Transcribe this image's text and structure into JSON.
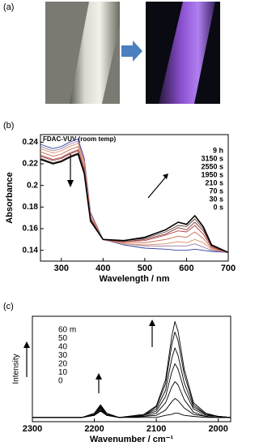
{
  "panel_labels": [
    "(a)",
    "(b)",
    "(c)"
  ],
  "chart_data": [
    {
      "type": "line",
      "title": "FDAC-VUV (room temp)",
      "x_label": "Wavelength / nm",
      "y_label": "Absorbance",
      "x": [
        250,
        280,
        300,
        320,
        340,
        355,
        370,
        400,
        450,
        500,
        550,
        580,
        600,
        620,
        640,
        660,
        700
      ],
      "xlim": [
        250,
        700
      ],
      "xticks": [
        300,
        400,
        500,
        600,
        700
      ],
      "ylim": [
        0.13,
        0.247
      ],
      "yticks": [
        0.14,
        0.16,
        0.18,
        0.2,
        0.22,
        0.24
      ],
      "series": [
        {
          "name": "9 h",
          "color": "#000000",
          "values": [
            0.224,
            0.22,
            0.222,
            0.226,
            0.229,
            0.211,
            0.167,
            0.15,
            0.149,
            0.152,
            0.159,
            0.166,
            0.164,
            0.172,
            0.162,
            0.145,
            0.138
          ]
        },
        {
          "name": "3150 s",
          "color": "#5a3a3a",
          "values": [
            0.225,
            0.221,
            0.223,
            0.227,
            0.23,
            0.212,
            0.168,
            0.15,
            0.149,
            0.151,
            0.157,
            0.163,
            0.162,
            0.169,
            0.16,
            0.144,
            0.138
          ]
        },
        {
          "name": "2550 s",
          "color": "#8a3a3a",
          "values": [
            0.227,
            0.223,
            0.225,
            0.229,
            0.232,
            0.214,
            0.169,
            0.15,
            0.148,
            0.15,
            0.155,
            0.161,
            0.159,
            0.166,
            0.158,
            0.144,
            0.138
          ]
        },
        {
          "name": "1950 s",
          "color": "#b04040",
          "values": [
            0.228,
            0.224,
            0.226,
            0.23,
            0.233,
            0.215,
            0.169,
            0.15,
            0.148,
            0.149,
            0.154,
            0.158,
            0.157,
            0.163,
            0.155,
            0.143,
            0.138
          ]
        },
        {
          "name": "210 s",
          "color": "#c86a4a",
          "values": [
            0.231,
            0.227,
            0.229,
            0.233,
            0.236,
            0.218,
            0.171,
            0.15,
            0.147,
            0.147,
            0.15,
            0.153,
            0.152,
            0.157,
            0.151,
            0.142,
            0.138
          ]
        },
        {
          "name": "70 s",
          "color": "#d9906a",
          "values": [
            0.234,
            0.23,
            0.232,
            0.236,
            0.239,
            0.221,
            0.173,
            0.15,
            0.146,
            0.145,
            0.146,
            0.148,
            0.147,
            0.15,
            0.147,
            0.141,
            0.138
          ]
        },
        {
          "name": "30 s",
          "color": "#9a7aa0",
          "values": [
            0.236,
            0.232,
            0.234,
            0.238,
            0.241,
            0.223,
            0.174,
            0.15,
            0.146,
            0.144,
            0.144,
            0.144,
            0.144,
            0.146,
            0.143,
            0.14,
            0.138
          ]
        },
        {
          "name": "0 s",
          "color": "#3040a0",
          "values": [
            0.238,
            0.234,
            0.236,
            0.24,
            0.243,
            0.225,
            0.175,
            0.15,
            0.145,
            0.142,
            0.141,
            0.14,
            0.14,
            0.141,
            0.14,
            0.139,
            0.138
          ]
        }
      ]
    },
    {
      "type": "line",
      "x_label": "Wavenumber / cm⁻¹",
      "y_label": "Intensity",
      "x": [
        2300,
        2250,
        2220,
        2200,
        2190,
        2180,
        2160,
        2120,
        2100,
        2085,
        2075,
        2070,
        2065,
        2055,
        2040,
        2020,
        2000,
        1980
      ],
      "xlim": [
        2300,
        1980
      ],
      "xticks": [
        2300,
        2200,
        2100,
        2000
      ],
      "ylim": [
        0,
        1
      ],
      "series": [
        {
          "name": "60 m",
          "color": "#000000",
          "values": [
            0.04,
            0.04,
            0.04,
            0.08,
            0.16,
            0.08,
            0.04,
            0.07,
            0.15,
            0.4,
            0.81,
            0.95,
            0.86,
            0.5,
            0.18,
            0.08,
            0.05,
            0.04
          ]
        },
        {
          "name": "50",
          "color": "#000000",
          "values": [
            0.04,
            0.04,
            0.04,
            0.07,
            0.15,
            0.07,
            0.04,
            0.06,
            0.14,
            0.36,
            0.73,
            0.85,
            0.77,
            0.45,
            0.16,
            0.07,
            0.05,
            0.04
          ]
        },
        {
          "name": "40",
          "color": "#000000",
          "values": [
            0.04,
            0.04,
            0.04,
            0.07,
            0.14,
            0.07,
            0.04,
            0.06,
            0.12,
            0.3,
            0.6,
            0.7,
            0.63,
            0.37,
            0.14,
            0.07,
            0.05,
            0.04
          ]
        },
        {
          "name": "30",
          "color": "#000000",
          "values": [
            0.04,
            0.04,
            0.04,
            0.07,
            0.13,
            0.07,
            0.04,
            0.06,
            0.1,
            0.24,
            0.47,
            0.55,
            0.5,
            0.3,
            0.12,
            0.06,
            0.05,
            0.04
          ]
        },
        {
          "name": "20",
          "color": "#000000",
          "values": [
            0.04,
            0.04,
            0.04,
            0.06,
            0.12,
            0.06,
            0.04,
            0.05,
            0.08,
            0.18,
            0.33,
            0.38,
            0.35,
            0.21,
            0.09,
            0.05,
            0.04,
            0.04
          ]
        },
        {
          "name": "10",
          "color": "#000000",
          "values": [
            0.04,
            0.04,
            0.04,
            0.06,
            0.11,
            0.06,
            0.04,
            0.05,
            0.06,
            0.11,
            0.19,
            0.22,
            0.2,
            0.13,
            0.07,
            0.05,
            0.04,
            0.04
          ]
        },
        {
          "name": "0",
          "color": "#000000",
          "values": [
            0.04,
            0.04,
            0.04,
            0.06,
            0.1,
            0.06,
            0.04,
            0.04,
            0.04,
            0.06,
            0.07,
            0.08,
            0.08,
            0.06,
            0.05,
            0.04,
            0.04,
            0.04
          ]
        }
      ]
    }
  ]
}
